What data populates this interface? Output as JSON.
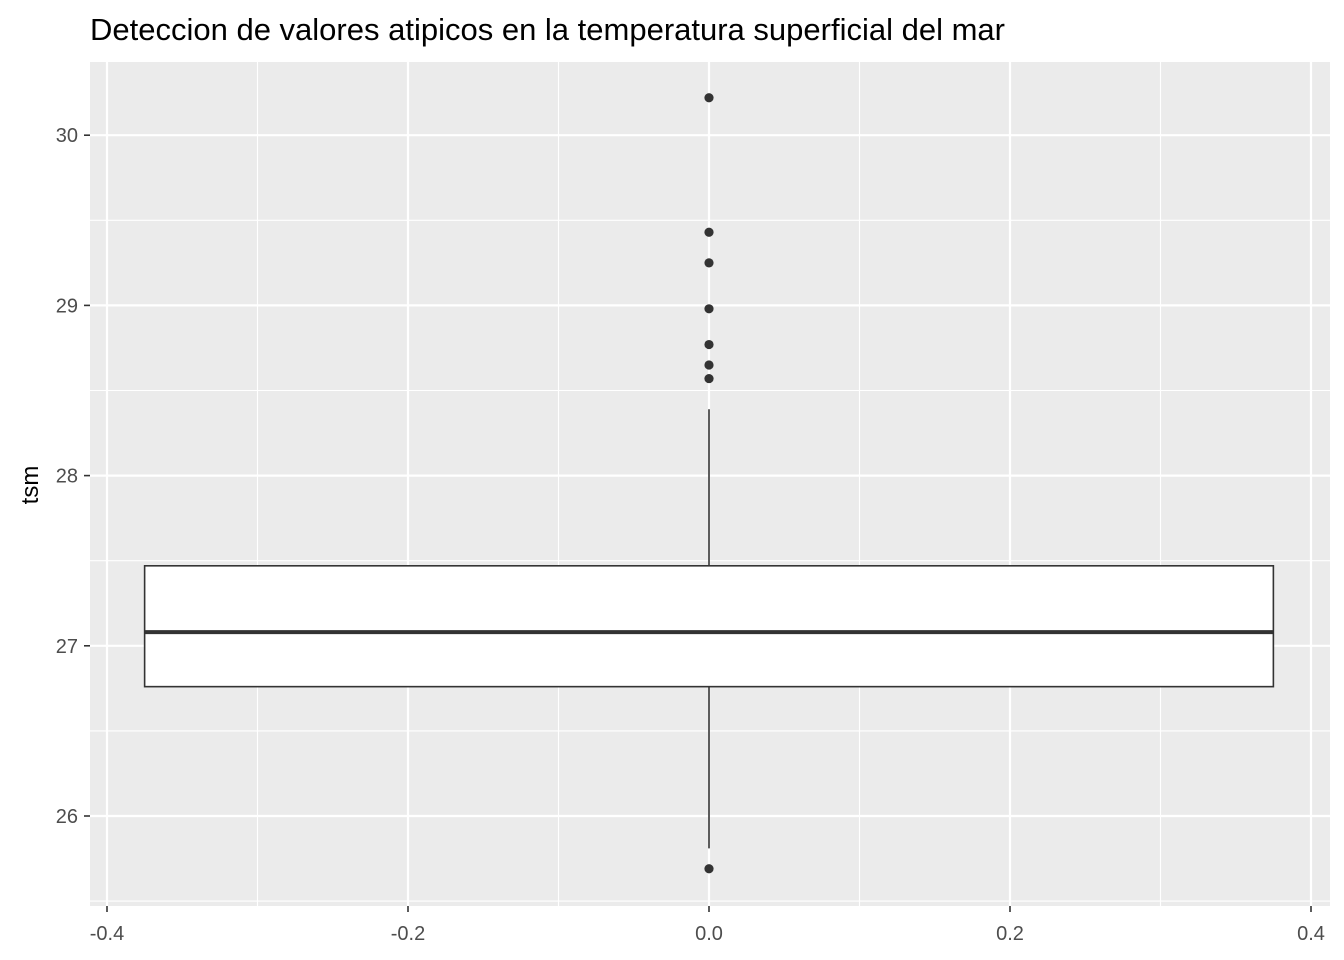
{
  "chart_data": {
    "type": "boxplot",
    "title": "Deteccion de valores atipicos en la temperatura superficial del mar",
    "xlabel": "",
    "ylabel": "tsm",
    "x_ticks": [
      "-0.4",
      "-0.2",
      "0.0",
      "0.2",
      "0.4"
    ],
    "y_ticks": [
      "26",
      "27",
      "28",
      "29",
      "30"
    ],
    "xlim": [
      -0.4,
      0.4
    ],
    "ylim": [
      25.47,
      30.43
    ],
    "grid": true,
    "box": {
      "x_center": 0.0,
      "x_left": -0.375,
      "x_right": 0.375,
      "q1": 26.76,
      "median": 27.08,
      "q3": 27.47,
      "whisker_low": 25.81,
      "whisker_high": 28.39
    },
    "outliers": [
      30.22,
      29.43,
      29.25,
      28.98,
      28.77,
      28.65,
      28.57,
      25.69
    ],
    "colors": {
      "panel": "#ebebeb",
      "grid": "#ffffff",
      "box_fill": "#ffffff",
      "box_line": "#333333",
      "point": "#333333"
    }
  }
}
